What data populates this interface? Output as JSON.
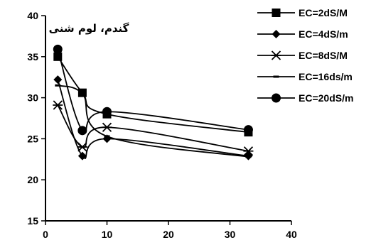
{
  "chart_data": {
    "type": "line",
    "title": "گندم، لوم شنی",
    "xlim": [
      0,
      40
    ],
    "ylim": [
      15,
      40
    ],
    "x_ticks": [
      "0",
      "10",
      "20",
      "30",
      "40"
    ],
    "y_ticks": [
      "15",
      "20",
      "25",
      "30",
      "35",
      "40"
    ],
    "grid": false,
    "legend_position": "right",
    "line_color": "#000000",
    "x": [
      2,
      6,
      10,
      33
    ],
    "series": [
      {
        "name": "EC=2dS/M",
        "marker": "square",
        "values": [
          35.0,
          30.6,
          28.0,
          25.8
        ]
      },
      {
        "name": "EC=4dS/m",
        "marker": "diamond",
        "values": [
          32.2,
          22.9,
          25.0,
          22.9
        ]
      },
      {
        "name": "EC=8dS/M",
        "marker": "star",
        "values": [
          29.1,
          24.0,
          26.4,
          23.5
        ]
      },
      {
        "name": "EC=16ds/m",
        "marker": "dash",
        "values": [
          31.5,
          30.5,
          25.3,
          22.8
        ]
      },
      {
        "name": "EC=20dS/m",
        "marker": "circle",
        "values": [
          35.9,
          26.0,
          28.3,
          26.1
        ]
      }
    ]
  }
}
